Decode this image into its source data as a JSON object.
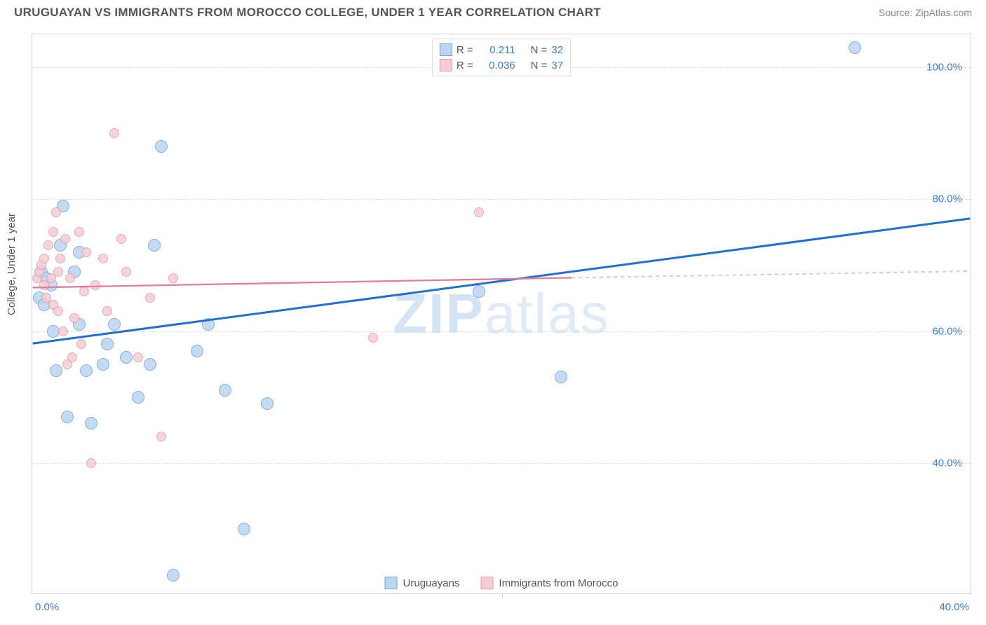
{
  "title": "URUGUAYAN VS IMMIGRANTS FROM MOROCCO COLLEGE, UNDER 1 YEAR CORRELATION CHART",
  "source_label": "Source: ",
  "source_name": "ZipAtlas.com",
  "ylabel": "College, Under 1 year",
  "watermark_a": "ZIP",
  "watermark_b": "atlas",
  "chart": {
    "type": "scatter",
    "background_color": "#ffffff",
    "grid_color": "#dddddd",
    "border_color": "#d0d0d0",
    "xlim": [
      0,
      40
    ],
    "ylim": [
      20,
      105
    ],
    "x_ticks": [
      0,
      40
    ],
    "x_tick_labels": [
      "0.0%",
      "40.0%"
    ],
    "x_tick_color": "#3b7dd8",
    "y_ticks": [
      40,
      60,
      80,
      100
    ],
    "y_tick_labels": [
      "40.0%",
      "60.0%",
      "80.0%",
      "100.0%"
    ],
    "y_tick_color": "#3b7dd8",
    "x_minor_tick_step": 20,
    "marker_radius_small": 7,
    "marker_radius_large": 9,
    "series": [
      {
        "name": "Uruguayans",
        "label": "Uruguayans",
        "color_fill": "#bcd5f0",
        "color_stroke": "#6fa3dd",
        "r_value": "0.211",
        "n_value": "32",
        "trend": {
          "x1": 0,
          "y1": 58,
          "x2": 40,
          "y2": 77,
          "color": "#1f6fd6",
          "width": 3,
          "dash": ""
        },
        "points": [
          [
            0.3,
            65
          ],
          [
            0.4,
            69
          ],
          [
            0.5,
            64
          ],
          [
            0.6,
            68
          ],
          [
            0.8,
            67
          ],
          [
            0.9,
            60
          ],
          [
            1.0,
            54
          ],
          [
            1.2,
            73
          ],
          [
            1.5,
            47
          ],
          [
            1.8,
            69
          ],
          [
            2.0,
            61
          ],
          [
            2.0,
            72
          ],
          [
            2.3,
            54
          ],
          [
            2.5,
            46
          ],
          [
            3.0,
            55
          ],
          [
            3.2,
            58
          ],
          [
            3.5,
            61
          ],
          [
            4.0,
            56
          ],
          [
            4.5,
            50
          ],
          [
            5.0,
            55
          ],
          [
            5.2,
            73
          ],
          [
            5.5,
            88
          ],
          [
            6.0,
            23
          ],
          [
            7.0,
            57
          ],
          [
            7.5,
            61
          ],
          [
            8.2,
            51
          ],
          [
            9.0,
            30
          ],
          [
            10.0,
            49
          ],
          [
            19.0,
            66
          ],
          [
            22.5,
            53
          ],
          [
            35.0,
            103
          ],
          [
            1.3,
            79
          ]
        ]
      },
      {
        "name": "Immigrants from Morocco",
        "label": "Immigrants from Morocco",
        "color_fill": "#f5cdd5",
        "color_stroke": "#e89aad",
        "r_value": "0.036",
        "n_value": "37",
        "trend": {
          "x1": 0,
          "y1": 66.5,
          "x2": 23,
          "y2": 68,
          "color": "#e97a9a",
          "width": 2.3,
          "dash": ""
        },
        "trend_ext": {
          "x1": 23,
          "y1": 68,
          "x2": 40,
          "y2": 69,
          "color": "#f0b8c5",
          "width": 1.8,
          "dash": "5,5"
        },
        "points": [
          [
            0.2,
            68
          ],
          [
            0.3,
            69
          ],
          [
            0.4,
            70
          ],
          [
            0.5,
            67
          ],
          [
            0.5,
            71
          ],
          [
            0.6,
            65
          ],
          [
            0.7,
            73
          ],
          [
            0.8,
            68
          ],
          [
            0.9,
            64
          ],
          [
            1.0,
            78
          ],
          [
            1.1,
            69
          ],
          [
            1.2,
            71
          ],
          [
            1.3,
            60
          ],
          [
            1.4,
            74
          ],
          [
            1.5,
            55
          ],
          [
            1.6,
            68
          ],
          [
            1.8,
            62
          ],
          [
            2.0,
            75
          ],
          [
            2.1,
            58
          ],
          [
            2.3,
            72
          ],
          [
            2.5,
            40
          ],
          [
            2.7,
            67
          ],
          [
            3.0,
            71
          ],
          [
            3.2,
            63
          ],
          [
            3.5,
            90
          ],
          [
            3.8,
            74
          ],
          [
            4.0,
            69
          ],
          [
            4.5,
            56
          ],
          [
            5.0,
            65
          ],
          [
            5.5,
            44
          ],
          [
            6.0,
            68
          ],
          [
            1.7,
            56
          ],
          [
            2.2,
            66
          ],
          [
            0.9,
            75
          ],
          [
            1.1,
            63
          ],
          [
            14.5,
            59
          ],
          [
            19.0,
            78
          ]
        ]
      }
    ],
    "legend_top": {
      "r_label": "R =",
      "n_label": "N =",
      "text_color": "#555555",
      "value_color": "#3b7dd8"
    }
  }
}
